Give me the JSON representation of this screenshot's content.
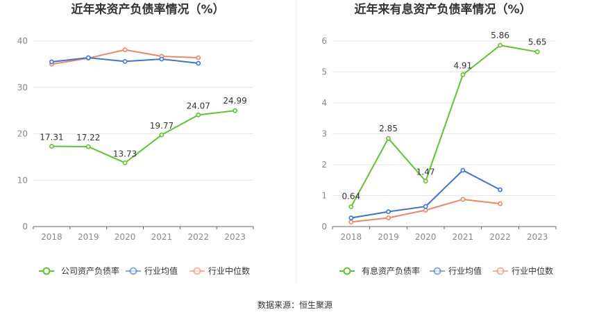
{
  "colors": {
    "company": "#5ec52b",
    "industry_avg": "#3a74d8",
    "industry_median": "#f08560",
    "grid": "#e6e6e6",
    "axis": "#666666",
    "divider": "#e8e8e8"
  },
  "chart_data": [
    {
      "type": "line",
      "title": "近年来资产负债率情况（%）",
      "categories": [
        "2018",
        "2019",
        "2020",
        "2021",
        "2022",
        "2023"
      ],
      "ylim": [
        0,
        40
      ],
      "yticks": [
        "0",
        "10",
        "20",
        "30",
        "40"
      ],
      "grid": true,
      "series": [
        {
          "name": "公司资产负债率",
          "values": [
            17.31,
            17.22,
            13.73,
            19.77,
            24.07,
            24.99
          ],
          "labels": [
            "17.31",
            "17.22",
            "13.73",
            "19.77",
            "24.07",
            "24.99"
          ]
        },
        {
          "name": "行业均值",
          "values": [
            35.5,
            36.4,
            35.6,
            36.1,
            35.2,
            null
          ]
        },
        {
          "name": "行业中位数",
          "values": [
            35.0,
            36.3,
            38.1,
            36.7,
            36.4,
            null
          ]
        }
      ]
    },
    {
      "type": "line",
      "title": "近年来有息资产负债率情况（%）",
      "categories": [
        "2018",
        "2019",
        "2020",
        "2021",
        "2022",
        "2023"
      ],
      "ylim": [
        0,
        6
      ],
      "yticks": [
        "0",
        "1",
        "2",
        "3",
        "4",
        "5",
        "6"
      ],
      "grid": true,
      "series": [
        {
          "name": "有息资产负债率",
          "values": [
            0.64,
            2.85,
            1.47,
            4.91,
            5.86,
            5.65
          ],
          "labels": [
            "0.64",
            "2.85",
            "1.47",
            "4.91",
            "5.86",
            "5.65"
          ]
        },
        {
          "name": "行业均值",
          "values": [
            0.28,
            0.48,
            0.65,
            1.82,
            1.19,
            null
          ]
        },
        {
          "name": "行业中位数",
          "values": [
            0.15,
            0.28,
            0.53,
            0.88,
            0.74,
            null
          ]
        }
      ]
    }
  ],
  "source": "数据来源：恒生聚源"
}
